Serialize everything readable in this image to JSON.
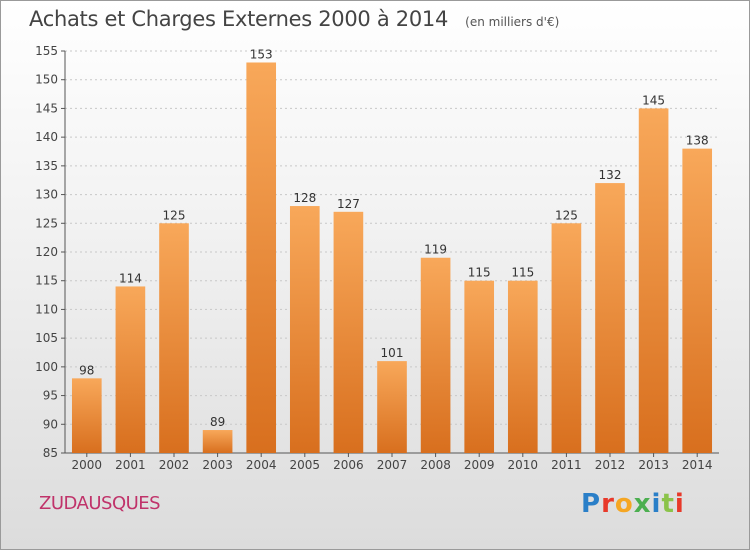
{
  "header": {
    "title": "Achats et Charges Externes 2000 à 2014",
    "subtitle": "(en milliers d'€)"
  },
  "footer": {
    "commune": "ZUDAUSQUES",
    "logo_text": "Proxiti",
    "logo_colors": [
      "#2a7fc8",
      "#e8392a",
      "#f5a623",
      "#4caf50",
      "#2a7fc8",
      "#8bc34a",
      "#e8392a"
    ]
  },
  "colors": {
    "bar_light": "#f8a85a",
    "bar_dark": "#d86f1e",
    "axis": "#555555",
    "grid": "#c8c8c8"
  },
  "chart_data": {
    "type": "bar",
    "title": "Achats et Charges Externes 2000 à 2014",
    "subtitle": "(en milliers d'€)",
    "categories": [
      "2000",
      "2001",
      "2002",
      "2003",
      "2004",
      "2005",
      "2006",
      "2007",
      "2008",
      "2009",
      "2010",
      "2011",
      "2012",
      "2013",
      "2014"
    ],
    "values": [
      98,
      114,
      125,
      89,
      153,
      128,
      127,
      101,
      119,
      115,
      115,
      125,
      132,
      145,
      138
    ],
    "ylim": [
      85,
      155
    ],
    "yticks": [
      85,
      90,
      95,
      100,
      105,
      110,
      115,
      120,
      125,
      130,
      135,
      140,
      145,
      150,
      155
    ],
    "grid": true,
    "legend": "none"
  }
}
